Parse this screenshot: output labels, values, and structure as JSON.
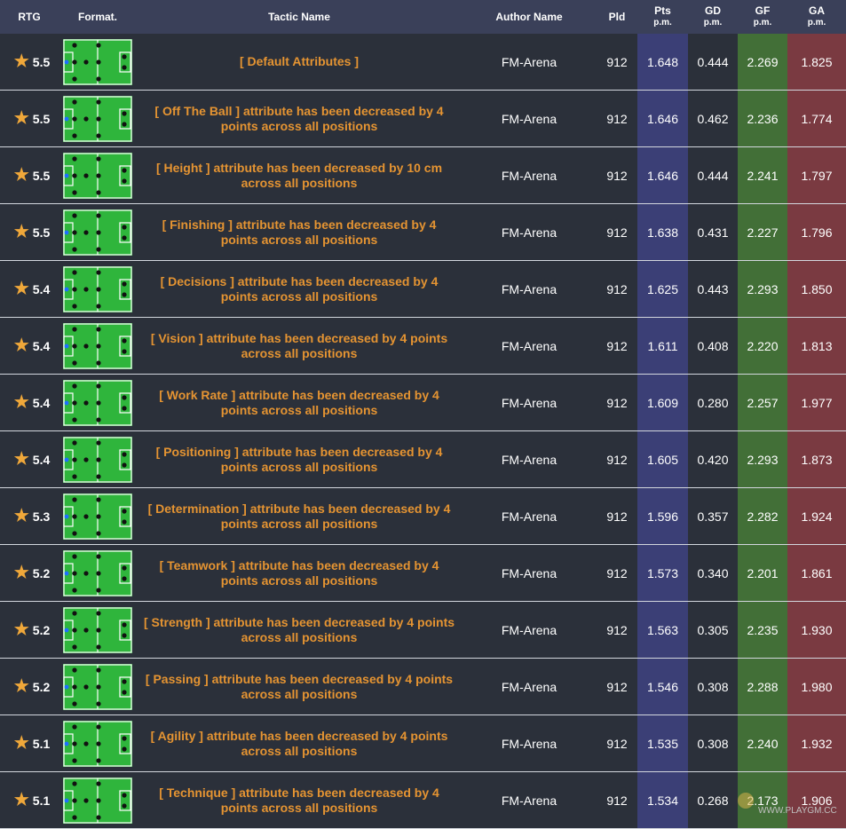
{
  "header": {
    "rtg": "RTG",
    "format": "Format.",
    "tactic_name": "Tactic Name",
    "author_name": "Author Name",
    "pld": "Pld",
    "pts": "Pts",
    "gd": "GD",
    "gf": "GF",
    "ga": "GA",
    "per_match": "p.m."
  },
  "colors": {
    "header_bg": "#3a4059",
    "row_bg": "#2b303a",
    "tactic_name": "#e59432",
    "star": "#f0a83a",
    "pts_bg": "#3b3f76",
    "gf_bg": "#426f37",
    "ga_bg": "#7a3a41",
    "pitch": "#2fb53c"
  },
  "icons": {
    "rating": "star-icon",
    "formation": "pitch-formation-icon"
  },
  "rows": [
    {
      "rtg": "5.5",
      "name": "[ Default Attributes ]",
      "author": "FM-Arena",
      "pld": "912",
      "pts": "1.648",
      "gd": "0.444",
      "gf": "2.269",
      "ga": "1.825"
    },
    {
      "rtg": "5.5",
      "name": "[ Off The Ball ] attribute has been decreased by 4 points across all positions",
      "author": "FM-Arena",
      "pld": "912",
      "pts": "1.646",
      "gd": "0.462",
      "gf": "2.236",
      "ga": "1.774"
    },
    {
      "rtg": "5.5",
      "name": "[ Height ] attribute has been decreased by 10 cm across all positions",
      "author": "FM-Arena",
      "pld": "912",
      "pts": "1.646",
      "gd": "0.444",
      "gf": "2.241",
      "ga": "1.797"
    },
    {
      "rtg": "5.5",
      "name": "[ Finishing ] attribute has been decreased by 4 points across all positions",
      "author": "FM-Arena",
      "pld": "912",
      "pts": "1.638",
      "gd": "0.431",
      "gf": "2.227",
      "ga": "1.796"
    },
    {
      "rtg": "5.4",
      "name": "[ Decisions ] attribute has been decreased by 4 points across all positions",
      "author": "FM-Arena",
      "pld": "912",
      "pts": "1.625",
      "gd": "0.443",
      "gf": "2.293",
      "ga": "1.850"
    },
    {
      "rtg": "5.4",
      "name": "[ Vision ] attribute has been decreased by 4 points across all positions",
      "author": "FM-Arena",
      "pld": "912",
      "pts": "1.611",
      "gd": "0.408",
      "gf": "2.220",
      "ga": "1.813"
    },
    {
      "rtg": "5.4",
      "name": "[ Work Rate ] attribute has been decreased by 4 points across all positions",
      "author": "FM-Arena",
      "pld": "912",
      "pts": "1.609",
      "gd": "0.280",
      "gf": "2.257",
      "ga": "1.977"
    },
    {
      "rtg": "5.4",
      "name": "[ Positioning ] attribute has been decreased by 4 points across all positions",
      "author": "FM-Arena",
      "pld": "912",
      "pts": "1.605",
      "gd": "0.420",
      "gf": "2.293",
      "ga": "1.873"
    },
    {
      "rtg": "5.3",
      "name": "[ Determination ] attribute has been decreased by 4 points across all positions",
      "author": "FM-Arena",
      "pld": "912",
      "pts": "1.596",
      "gd": "0.357",
      "gf": "2.282",
      "ga": "1.924"
    },
    {
      "rtg": "5.2",
      "name": "[ Teamwork ] attribute has been decreased by 4 points across all positions",
      "author": "FM-Arena",
      "pld": "912",
      "pts": "1.573",
      "gd": "0.340",
      "gf": "2.201",
      "ga": "1.861"
    },
    {
      "rtg": "5.2",
      "name": "[ Strength ] attribute has been decreased by 4 points across all positions",
      "author": "FM-Arena",
      "pld": "912",
      "pts": "1.563",
      "gd": "0.305",
      "gf": "2.235",
      "ga": "1.930"
    },
    {
      "rtg": "5.2",
      "name": "[ Passing ] attribute has been decreased by 4 points across all positions",
      "author": "FM-Arena",
      "pld": "912",
      "pts": "1.546",
      "gd": "0.308",
      "gf": "2.288",
      "ga": "1.980"
    },
    {
      "rtg": "5.1",
      "name": "[ Agility ] attribute has been decreased by 4 points across all positions",
      "author": "FM-Arena",
      "pld": "912",
      "pts": "1.535",
      "gd": "0.308",
      "gf": "2.240",
      "ga": "1.932"
    },
    {
      "rtg": "5.1",
      "name": "[ Technique ] attribute has been decreased by 4 points across all positions",
      "author": "FM-Arena",
      "pld": "912",
      "pts": "1.534",
      "gd": "0.268",
      "gf": "2.173",
      "ga": "1.906"
    }
  ],
  "watermark": {
    "text": "WWW.PLAYGM.CC"
  }
}
